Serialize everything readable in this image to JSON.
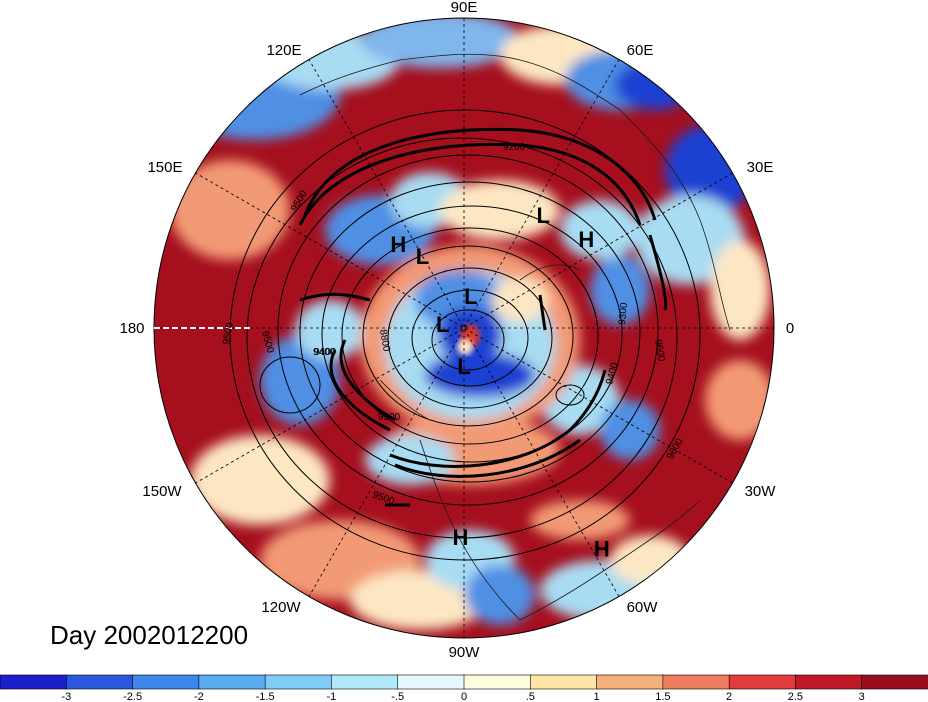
{
  "title": "Day 2002012200",
  "longitude_labels": [
    "90E",
    "60E",
    "30E",
    "0",
    "30W",
    "60W",
    "90W",
    "120W",
    "150W",
    "180",
    "150E",
    "120E"
  ],
  "pressure_centers": [
    {
      "label": "H",
      "lat": 52,
      "lon": 128
    },
    {
      "label": "L",
      "lat": 42,
      "lon": 55
    },
    {
      "label": "H",
      "lat": 38,
      "lon": 36
    },
    {
      "label": "L",
      "lat": 60,
      "lon": 120
    },
    {
      "label": "L",
      "lat": 78,
      "lon": 78
    },
    {
      "label": "L",
      "lat": 82,
      "lon": 170
    },
    {
      "label": "L",
      "lat": 76,
      "lon": -90
    },
    {
      "label": "H",
      "lat": 22,
      "lon": -91
    },
    {
      "label": "H",
      "lat": 10,
      "lon": -58
    }
  ],
  "contour_labels": [
    "9500",
    "9400",
    "9300",
    "9200",
    "9600",
    "9500",
    "9400",
    "9300",
    "8800",
    "9600",
    "9500",
    "9500",
    "9400"
  ],
  "colorbar": {
    "ticks": [
      "-3",
      "-2.5",
      "-2",
      "-1.5",
      "-1",
      "-.5",
      "0",
      ".5",
      "1",
      "1.5",
      "2",
      "2.5",
      "3"
    ],
    "colors": [
      "#1d1fcc",
      "#2b57df",
      "#3c86ec",
      "#58aaf1",
      "#7fccf6",
      "#b2e9fa",
      "#e7f8fd",
      "#fffbe0",
      "#fde6a6",
      "#f6b07b",
      "#ee7b5d",
      "#e33b3c",
      "#c11a26",
      "#9b0d1c"
    ]
  },
  "field_colors": {
    "dark_red": "#a50f1e",
    "red": "#d63a33",
    "orange": "#f29a74",
    "cream": "#fde7c3",
    "light_blue": "#a8dcf3",
    "blue": "#4f8fe4",
    "dark_blue": "#1f3fd1"
  }
}
